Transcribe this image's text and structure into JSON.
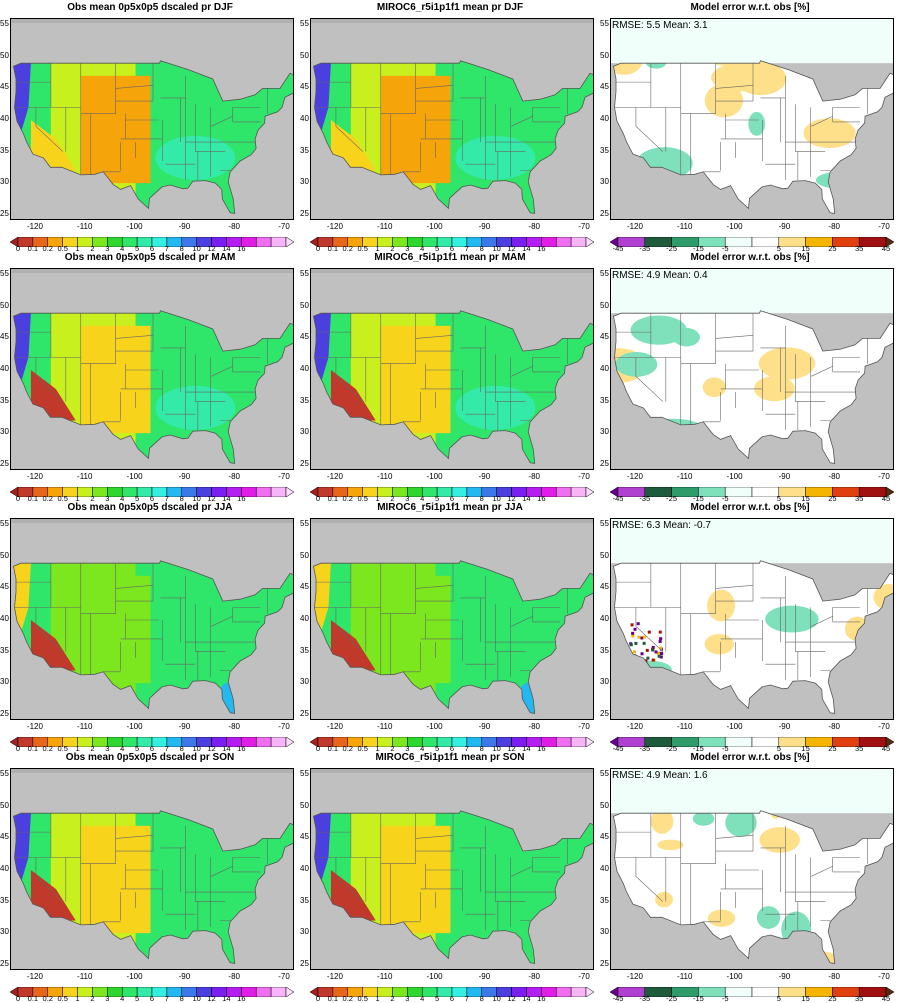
{
  "panels": [
    {
      "title": "Obs mean 0p5x0p5 dscaled pr DJF",
      "kind": "abs",
      "season": "DJF"
    },
    {
      "title": "MIROC6_r5i1p1f1 mean pr DJF",
      "kind": "abs",
      "season": "DJF"
    },
    {
      "title": "Model error w.r.t. obs [%]",
      "kind": "err",
      "season": "DJF",
      "stats": "RMSE: 5.5  Mean: 3.1"
    },
    {
      "title": "Obs mean 0p5x0p5 dscaled pr MAM",
      "kind": "abs",
      "season": "MAM"
    },
    {
      "title": "MIROC6_r5i1p1f1 mean pr MAM",
      "kind": "abs",
      "season": "MAM"
    },
    {
      "title": "Model error w.r.t. obs [%]",
      "kind": "err",
      "season": "MAM",
      "stats": "RMSE: 4.9  Mean: 0.4"
    },
    {
      "title": "Obs mean 0p5x0p5 dscaled pr JJA",
      "kind": "abs",
      "season": "JJA"
    },
    {
      "title": "MIROC6_r5i1p1f1 mean pr JJA",
      "kind": "abs",
      "season": "JJA"
    },
    {
      "title": "Model error w.r.t. obs [%]",
      "kind": "err",
      "season": "JJA",
      "stats": "RMSE: 6.3  Mean: -0.7"
    },
    {
      "title": "Obs mean 0p5x0p5 dscaled pr SON",
      "kind": "abs",
      "season": "SON"
    },
    {
      "title": "MIROC6_r5i1p1f1 mean pr SON",
      "kind": "abs",
      "season": "SON"
    },
    {
      "title": "Model error w.r.t. obs [%]",
      "kind": "err",
      "season": "SON",
      "stats": "RMSE: 4.9  Mean: 1.6"
    }
  ],
  "axes": {
    "y_ticks": [
      "55",
      "50",
      "45",
      "40",
      "35",
      "30",
      "25"
    ],
    "x_ticks": [
      "-120",
      "-110",
      "-100",
      "-90",
      "-80",
      "-70"
    ]
  },
  "colorbars": {
    "abs": {
      "labels": [
        "0",
        "0.1",
        "0.2",
        "0.5",
        "1",
        "2",
        "3",
        "4",
        "5",
        "6",
        "7",
        "8",
        "10",
        "12",
        "14",
        "16"
      ],
      "colors": [
        "#a61e1e",
        "#c0392b",
        "#e8661a",
        "#f5a40a",
        "#f7d31c",
        "#c8f01e",
        "#7ce61e",
        "#30d630",
        "#2fe56a",
        "#34eaa8",
        "#35f0e0",
        "#24b8f0",
        "#3c78e8",
        "#4b3fe0",
        "#7a1ff0",
        "#b41ef0",
        "#e01ee6",
        "#f06ef0",
        "#f7b4f7",
        "#fbe0fb"
      ]
    },
    "err": {
      "labels": [
        "-45",
        "-35",
        "-25",
        "-15",
        "-5",
        "5",
        "15",
        "25",
        "35",
        "45"
      ],
      "colors": [
        "#6a0090",
        "#b040d0",
        "#1e5a3c",
        "#2f9a6a",
        "#7fe0bc",
        "#f0fffa",
        "#ffffff",
        "#ffe08a",
        "#f5b400",
        "#e04010",
        "#a01010",
        "#5a2a10"
      ]
    }
  },
  "colors": {
    "land_fill": "#c0c0c0",
    "ocean_nodata": "#c0c0c0",
    "border_lines": "#666666"
  }
}
